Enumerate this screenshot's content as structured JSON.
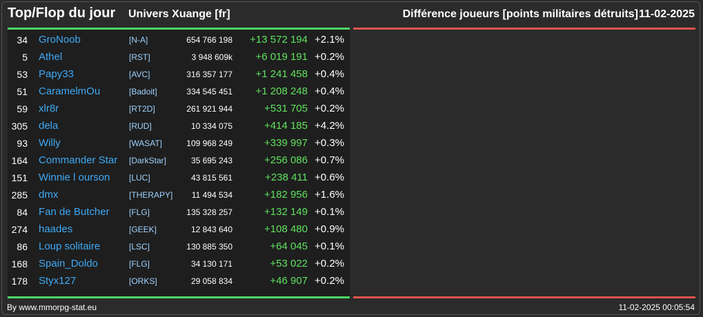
{
  "header": {
    "title": "Top/Flop du jour",
    "universe": "Univers Xuange [fr]",
    "subtitle": "Différence joueurs [points militaires détruits]",
    "date": "11-02-2025"
  },
  "rows": [
    {
      "rank": "34",
      "name": "GroNoob",
      "alliance": "[N-A]",
      "points": "654 766 198",
      "diff": "+13 572 194",
      "pct": "+2.1%"
    },
    {
      "rank": "5",
      "name": "Athel",
      "alliance": "[RST]",
      "points": "3 948 609k",
      "diff": "+6 019 191",
      "pct": "+0.2%"
    },
    {
      "rank": "53",
      "name": "Papy33",
      "alliance": "[AVC]",
      "points": "316 357 177",
      "diff": "+1 241 458",
      "pct": "+0.4%"
    },
    {
      "rank": "51",
      "name": "CaramelmOu",
      "alliance": "[Badoit]",
      "points": "334 545 451",
      "diff": "+1 208 248",
      "pct": "+0.4%"
    },
    {
      "rank": "59",
      "name": "xlr8r",
      "alliance": "[RT2D]",
      "points": "261 921 944",
      "diff": "+531 705",
      "pct": "+0.2%"
    },
    {
      "rank": "305",
      "name": "dela",
      "alliance": "[RUD]",
      "points": "10 334 075",
      "diff": "+414 185",
      "pct": "+4.2%"
    },
    {
      "rank": "93",
      "name": "Willy",
      "alliance": "[WASAT]",
      "points": "109 968 249",
      "diff": "+339 997",
      "pct": "+0.3%"
    },
    {
      "rank": "164",
      "name": "Commander Star",
      "alliance": "[DarkStar]",
      "points": "35 695 243",
      "diff": "+256 086",
      "pct": "+0.7%"
    },
    {
      "rank": "151",
      "name": "Winnie l ourson",
      "alliance": "[LUC]",
      "points": "43 815 561",
      "diff": "+238 411",
      "pct": "+0.6%"
    },
    {
      "rank": "285",
      "name": "dmx",
      "alliance": "[THERAPY]",
      "points": "11 494 534",
      "diff": "+182 956",
      "pct": "+1.6%"
    },
    {
      "rank": "84",
      "name": "Fan de Butcher",
      "alliance": "[FLG]",
      "points": "135 328 257",
      "diff": "+132 149",
      "pct": "+0.1%"
    },
    {
      "rank": "274",
      "name": "haades",
      "alliance": "[GEEK]",
      "points": "12 843 640",
      "diff": "+108 480",
      "pct": "+0.9%"
    },
    {
      "rank": "86",
      "name": "Loup solitaire",
      "alliance": "[LSC]",
      "points": "130 885 350",
      "diff": "+64 045",
      "pct": "+0.1%"
    },
    {
      "rank": "168",
      "name": "Spain_Doldo",
      "alliance": "[FLG]",
      "points": "34 130 171",
      "diff": "+53 022",
      "pct": "+0.2%"
    },
    {
      "rank": "178",
      "name": "Styx127",
      "alliance": "[ORKS]",
      "points": "29 058 834",
      "diff": "+46 907",
      "pct": "+0.2%"
    }
  ],
  "footer": {
    "credit": "By www.mmorpg-stat.eu",
    "timestamp": "11-02-2025 00:05:54"
  },
  "colors": {
    "top_accent": "#4cd964",
    "flop_accent": "#e0544c",
    "name": "#3fa9f5",
    "gain": "#5fe35f"
  }
}
